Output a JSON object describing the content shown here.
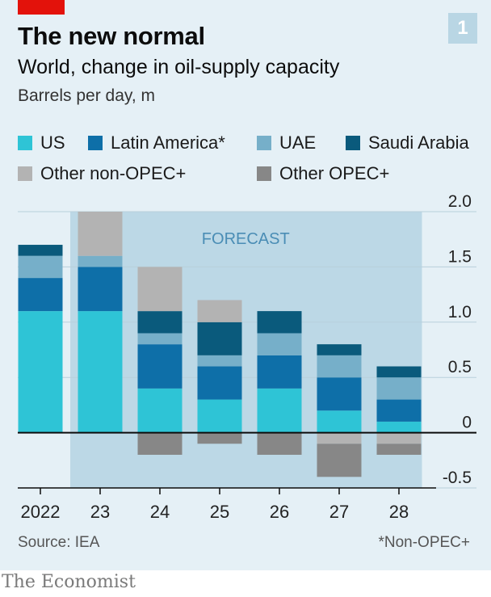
{
  "header": {
    "title": "The new normal",
    "badge": "1",
    "subtitle": "World, change in oil-supply capacity",
    "unit": "Barrels per day, m"
  },
  "legend": [
    {
      "label": "US",
      "color": "#2ec4d6"
    },
    {
      "label": "Latin America*",
      "color": "#0e6fa8"
    },
    {
      "label": "UAE",
      "color": "#76afc9"
    },
    {
      "label": "Saudi Arabia",
      "color": "#0a5a7c"
    },
    {
      "label": "Other non-OPEC+",
      "color": "#b3b3b3"
    },
    {
      "label": "Other OPEC+",
      "color": "#878787"
    }
  ],
  "chart_data": {
    "type": "bar",
    "stacked": true,
    "categories": [
      "2022",
      "23",
      "24",
      "25",
      "26",
      "27",
      "28"
    ],
    "series": [
      {
        "name": "US",
        "color": "#2ec4d6",
        "values": [
          1.1,
          1.1,
          0.4,
          0.3,
          0.4,
          0.2,
          0.1
        ]
      },
      {
        "name": "Latin America*",
        "color": "#0e6fa8",
        "values": [
          0.3,
          0.4,
          0.4,
          0.3,
          0.3,
          0.3,
          0.2
        ]
      },
      {
        "name": "UAE",
        "color": "#76afc9",
        "values": [
          0.2,
          0.1,
          0.1,
          0.1,
          0.2,
          0.2,
          0.2
        ]
      },
      {
        "name": "Saudi Arabia",
        "color": "#0a5a7c",
        "values": [
          0.1,
          0.0,
          0.2,
          0.3,
          0.2,
          0.1,
          0.1
        ]
      },
      {
        "name": "Other non-OPEC+",
        "color": "#b3b3b3",
        "values": [
          0.0,
          0.4,
          0.4,
          0.2,
          0.0,
          -0.1,
          -0.1
        ]
      },
      {
        "name": "Other OPEC+",
        "color": "#878787",
        "values": [
          0.0,
          0.0,
          -0.2,
          -0.1,
          -0.2,
          -0.3,
          -0.1
        ]
      }
    ],
    "yticks": [
      "2.0",
      "1.5",
      "1.0",
      "0.5",
      "0",
      "-0.5"
    ],
    "ytick_values": [
      2.0,
      1.5,
      1.0,
      0.5,
      0,
      -0.5
    ],
    "ylim": [
      -0.5,
      2.0
    ],
    "forecast_label": "FORECAST",
    "forecast_start_category": "23",
    "grid": true,
    "legend_position": "top"
  },
  "footer": {
    "source": "Source: IEA",
    "footnote": "*Non-OPEC+",
    "brand": "The Economist"
  }
}
